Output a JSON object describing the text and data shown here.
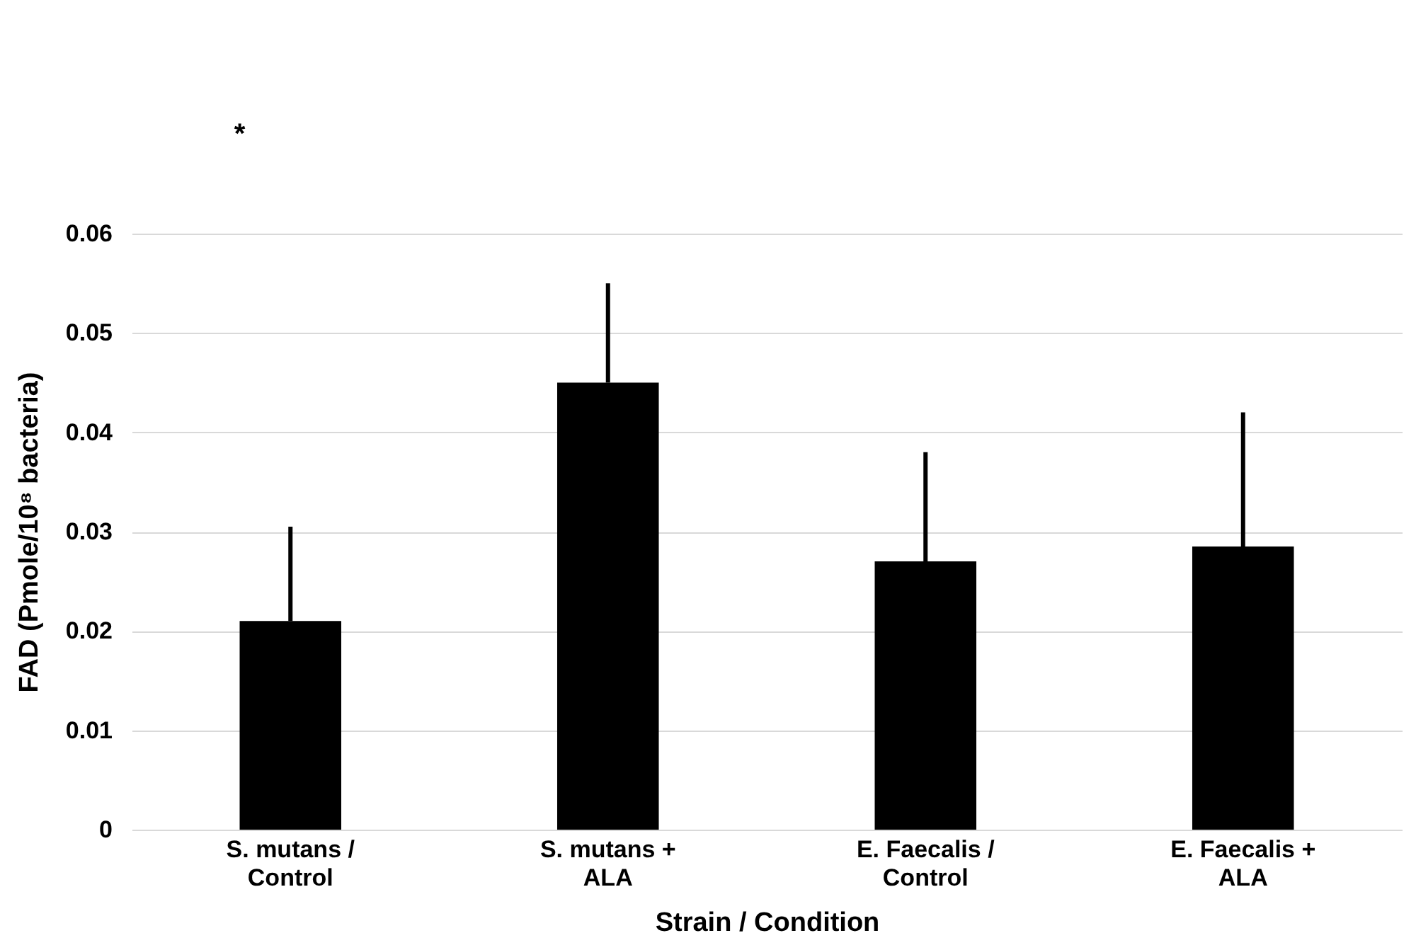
{
  "chart_data": {
    "type": "bar",
    "categories": [
      "S. mutans /\nControl",
      "S. mutans +\nALA",
      "E. Faecalis /\nControl",
      "E. Faecalis +\nALA"
    ],
    "values": [
      0.021,
      0.045,
      0.027,
      0.0285
    ],
    "errors": [
      [
        0.021,
        0.0305
      ],
      [
        0.045,
        0.055
      ],
      [
        0.027,
        0.038
      ],
      [
        0.0285,
        0.042
      ]
    ],
    "color": "#000000",
    "xlabel": "Strain / Condition",
    "ylabel": "FAD (Pmole/10⁸ bacteria)",
    "ylim": [
      0,
      0.06
    ],
    "yticks": [
      0,
      0.01,
      0.02,
      0.03,
      0.04,
      0.05,
      0.06
    ],
    "grid": "y",
    "annotations": [
      "*"
    ]
  }
}
